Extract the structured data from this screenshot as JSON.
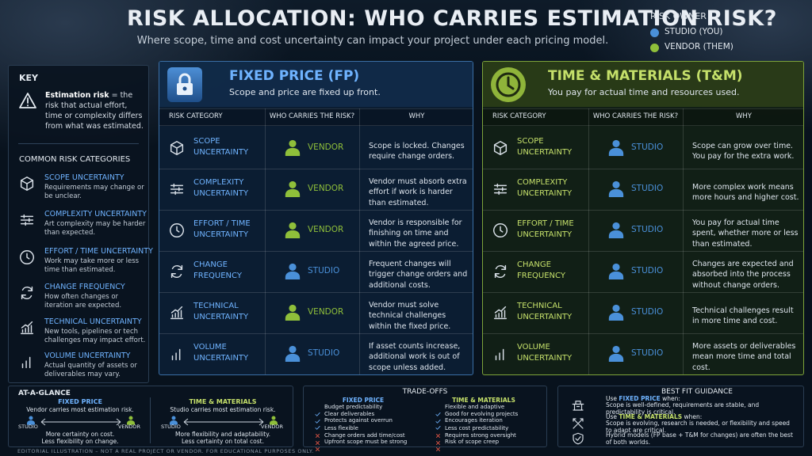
{
  "header": {
    "title": "RISK ALLOCATION: WHO CARRIES ESTIMATION RISK?",
    "subtitle": "Where scope, time and cost uncertainty can impact your project under each pricing model."
  },
  "legend": {
    "title": "RISK OWNER",
    "items": [
      {
        "label": "STUDIO (YOU)",
        "color": "#4a90d9"
      },
      {
        "label": "VENDOR (THEM)",
        "color": "#8fbf3a"
      }
    ]
  },
  "key": {
    "title": "KEY",
    "term": "Estimation risk",
    "definition": "= the risk that actual effort, time or complexity differs from what was estimated.",
    "categories_title": "COMMON RISK CATEGORIES",
    "categories": [
      {
        "name": "SCOPE UNCERTAINTY",
        "desc": "Requirements may change or be unclear."
      },
      {
        "name": "COMPLEXITY UNCERTAINTY",
        "desc": "Art complexity may be harder than expected."
      },
      {
        "name": "EFFORT / TIME UNCERTAINTY",
        "desc": "Work may take more or less time than estimated."
      },
      {
        "name": "CHANGE FREQUENCY",
        "desc": "How often changes or iteration are expected."
      },
      {
        "name": "TECHNICAL UNCERTAINTY",
        "desc": "New tools, pipelines or tech challenges may impact effort."
      },
      {
        "name": "VOLUME UNCERTAINTY",
        "desc": "Actual quantity of assets or deliverables may vary."
      }
    ]
  },
  "models": [
    {
      "title": "FIXED PRICE (FP)",
      "subtitle": "Scope and price are fixed up front.",
      "color": "#6fb3ff",
      "columns": [
        "RISK CATEGORY",
        "WHO CARRIES THE RISK?",
        "WHY"
      ],
      "rows": [
        [
          "SCOPE UNCERTAINTY",
          "VENDOR",
          "Scope is locked. Changes require change orders."
        ],
        [
          "COMPLEXITY UNCERTAINTY",
          "VENDOR",
          "Vendor must absorb extra effort if work is harder than estimated."
        ],
        [
          "EFFORT / TIME UNCERTAINTY",
          "VENDOR",
          "Vendor is responsible for finishing on time and within the agreed price."
        ],
        [
          "CHANGE FREQUENCY",
          "STUDIO",
          "Frequent changes will trigger change orders and additional costs."
        ],
        [
          "TECHNICAL UNCERTAINTY",
          "VENDOR",
          "Vendor must solve technical challenges within the fixed price."
        ],
        [
          "VOLUME UNCERTAINTY",
          "STUDIO",
          "If asset counts increase, additional work is out of scope unless added."
        ]
      ]
    },
    {
      "title": "TIME & MATERIALS (T&M)",
      "subtitle": "You pay for actual time and resources used.",
      "color": "#c5e06a",
      "columns": [
        "RISK CATEGORY",
        "WHO CARRIES THE RISK?",
        "WHY"
      ],
      "rows": [
        [
          "SCOPE UNCERTAINTY",
          "STUDIO",
          "Scope can grow over time. You pay for the extra work."
        ],
        [
          "COMPLEXITY UNCERTAINTY",
          "STUDIO",
          "More complex work means more hours and higher cost."
        ],
        [
          "EFFORT / TIME UNCERTAINTY",
          "STUDIO",
          "You pay for actual time spent, whether more or less than estimated."
        ],
        [
          "CHANGE FREQUENCY",
          "STUDIO",
          "Changes are expected and absorbed into the process without change orders."
        ],
        [
          "TECHNICAL UNCERTAINTY",
          "STUDIO",
          "Technical challenges result in more time and cost."
        ],
        [
          "VOLUME UNCERTAINTY",
          "STUDIO",
          "More assets or deliverables mean more time and total cost."
        ]
      ]
    }
  ],
  "glance": {
    "title": "AT-A-GLANCE",
    "items": [
      {
        "model": "FIXED PRICE",
        "desc": "Vendor carries most estimation risk.",
        "left": "STUDIO",
        "right": "VENDOR",
        "lines": [
          "More certainty on cost.",
          "Less flexibility on change."
        ]
      },
      {
        "model": "TIME & MATERIALS",
        "desc": "Studio carries most estimation risk.",
        "left": "STUDIO",
        "right": "VENDOR",
        "lines": [
          "More flexibility and adaptability.",
          "Less certainty on total cost."
        ]
      }
    ]
  },
  "tradeoffs": {
    "title": "TRADE-OFFS",
    "columns": [
      {
        "model": "FIXED PRICE",
        "pros": [
          "Budget predictability",
          "Clear deliverables",
          "Protects against overrun"
        ],
        "cons": [
          "Less flexible",
          "Change orders add time/cost",
          "Upfront scope must be strong"
        ]
      },
      {
        "model": "TIME & MATERIALS",
        "pros": [
          "Flexible and adaptive",
          "Good for evolving projects",
          "Encourages iteration"
        ],
        "cons": [
          "Less cost predictability",
          "Requires strong oversight",
          "Risk of scope creep"
        ]
      }
    ]
  },
  "bestfit": {
    "title": "BEST FIT GUIDANCE",
    "items": [
      {
        "prefix": "Use",
        "highlight": "FIXED PRICE",
        "suffix": "when:",
        "text": "Scope is well-defined, requirements are stable, and predictability is critical."
      },
      {
        "prefix": "Use",
        "highlight": "TIME & MATERIALS",
        "suffix": "when:",
        "text": "Scope is evolving, research is needed, or flexibility and speed to adapt are critical."
      }
    ],
    "hybrid": "Hybrid models (FP base + T&M for changes) are often the best of both worlds."
  },
  "footer": "EDITORIAL ILLUSTRATION – NOT A REAL PROJECT OR VENDOR. FOR EDUCATIONAL PURPOSES ONLY."
}
